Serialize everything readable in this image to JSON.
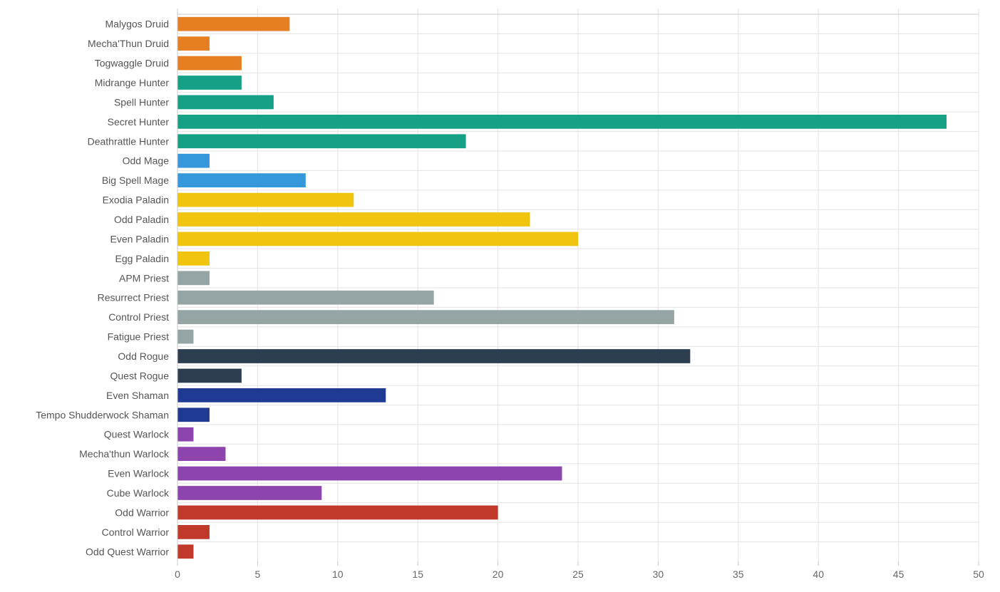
{
  "chart_data": {
    "type": "bar",
    "orientation": "horizontal",
    "title": "",
    "xlabel": "",
    "ylabel": "",
    "xlim": [
      0,
      50
    ],
    "x_ticks": [
      0,
      5,
      10,
      15,
      20,
      25,
      30,
      35,
      40,
      45,
      50
    ],
    "grid": true,
    "categories": [
      "Malygos Druid",
      "Mecha'Thun Druid",
      "Togwaggle Druid",
      "Midrange Hunter",
      "Spell Hunter",
      "Secret Hunter",
      "Deathrattle Hunter",
      "Odd Mage",
      "Big Spell Mage",
      "Exodia Paladin",
      "Odd Paladin",
      "Even Paladin",
      "Egg Paladin",
      "APM Priest",
      "Resurrect Priest",
      "Control Priest",
      "Fatigue Priest",
      "Odd Rogue",
      "Quest Rogue",
      "Even Shaman",
      "Tempo Shudderwock Shaman",
      "Quest Warlock",
      "Mecha'thun Warlock",
      "Even Warlock",
      "Cube Warlock",
      "Odd Warrior",
      "Control Warrior",
      "Odd Quest Warrior"
    ],
    "values": [
      7,
      2,
      4,
      4,
      6,
      48,
      18,
      2,
      8,
      11,
      22,
      25,
      2,
      2,
      16,
      31,
      1,
      32,
      4,
      13,
      2,
      1,
      3,
      24,
      9,
      20,
      2,
      1
    ],
    "colors": [
      "#e67e22",
      "#e67e22",
      "#e67e22",
      "#16a085",
      "#16a085",
      "#16a085",
      "#16a085",
      "#3498db",
      "#3498db",
      "#f1c40f",
      "#f1c40f",
      "#f1c40f",
      "#f1c40f",
      "#95a5a6",
      "#95a5a6",
      "#95a5a6",
      "#95a5a6",
      "#2c3e50",
      "#2c3e50",
      "#1f3a93",
      "#1f3a93",
      "#8e44ad",
      "#8e44ad",
      "#8e44ad",
      "#8e44ad",
      "#c0392b",
      "#c0392b",
      "#c0392b"
    ],
    "grid_color": "#e3e3e3",
    "axis_color": "#c8c8c8"
  }
}
